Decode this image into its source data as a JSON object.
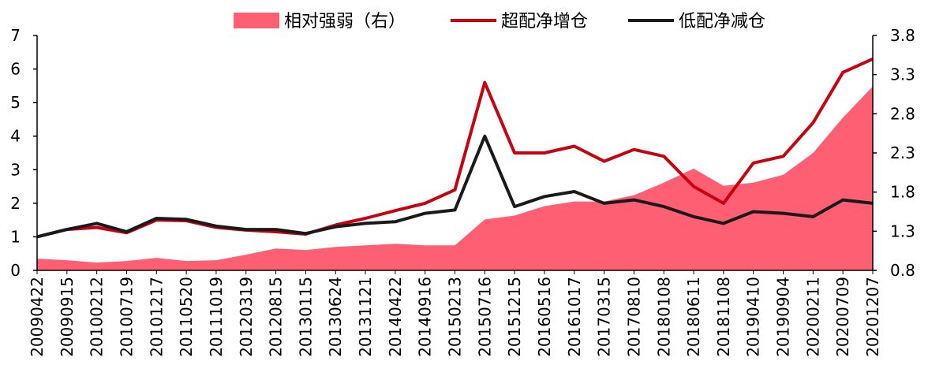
{
  "chart_data": {
    "type": "line",
    "legend_position": "top",
    "grid": false,
    "x_categories": [
      "20090422",
      "20090915",
      "20100212",
      "20100719",
      "20101217",
      "20110520",
      "20111019",
      "20120319",
      "20120815",
      "20130115",
      "20130624",
      "20131121",
      "20140422",
      "20140916",
      "20150213",
      "20150716",
      "20151215",
      "20160516",
      "20161017",
      "20170315",
      "20170810",
      "20180108",
      "20180611",
      "20181108",
      "20190410",
      "20190904",
      "20200211",
      "20200709",
      "20201207"
    ],
    "y_left": {
      "min": 0,
      "max": 7,
      "ticks": [
        0,
        1,
        2,
        3,
        4,
        5,
        6,
        7
      ]
    },
    "y_right": {
      "min": 0.8,
      "max": 3.8,
      "ticks": [
        "0.8",
        "1.3",
        "1.8",
        "2.3",
        "2.8",
        "3.3",
        "3.8"
      ]
    },
    "series": [
      {
        "name": "相对强弱（右）",
        "kind": "area",
        "axis": "right",
        "color": "#ff5f73",
        "values": [
          0.95,
          0.93,
          0.9,
          0.92,
          0.96,
          0.92,
          0.93,
          1.0,
          1.08,
          1.06,
          1.1,
          1.12,
          1.14,
          1.12,
          1.12,
          1.45,
          1.5,
          1.62,
          1.68,
          1.68,
          1.76,
          1.92,
          2.1,
          1.88,
          1.92,
          2.02,
          2.3,
          2.75,
          3.15
        ]
      },
      {
        "name": "超配净增仓",
        "kind": "line",
        "axis": "left",
        "color": "#c8000f",
        "values": [
          1.0,
          1.22,
          1.28,
          1.12,
          1.5,
          1.48,
          1.28,
          1.2,
          1.15,
          1.08,
          1.35,
          1.55,
          1.78,
          2.0,
          2.4,
          5.6,
          3.5,
          3.5,
          3.7,
          3.25,
          3.6,
          3.4,
          2.5,
          2.0,
          3.2,
          3.4,
          4.4,
          5.9,
          6.3
        ]
      },
      {
        "name": "低配净减仓",
        "kind": "line",
        "axis": "left",
        "color": "#1a1a1a",
        "values": [
          1.0,
          1.22,
          1.4,
          1.15,
          1.55,
          1.52,
          1.32,
          1.22,
          1.22,
          1.1,
          1.3,
          1.4,
          1.45,
          1.7,
          1.8,
          4.0,
          1.9,
          2.2,
          2.35,
          2.0,
          2.1,
          1.9,
          1.6,
          1.4,
          1.75,
          1.7,
          1.6,
          2.1,
          2.0
        ]
      }
    ]
  }
}
